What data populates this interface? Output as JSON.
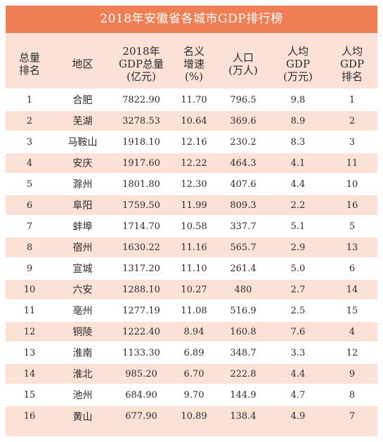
{
  "title": "2018年安徽省各城市GDP排行榜",
  "colors": {
    "header_bar": "#ef7e55",
    "band": "#fbe1d6",
    "text": "#2b2b2b"
  },
  "columns": [
    "总量\n排名",
    "地区",
    "2018年\nGDP总量\n(亿元)",
    "名义\n增速\n(%)",
    "人口\n(万人)",
    "人均\nGDP\n(万元)",
    "人均\nGDP\n排名"
  ],
  "rows": [
    [
      "1",
      "合肥",
      "7822.90",
      "11.70",
      "796.5",
      "9.8",
      "1"
    ],
    [
      "2",
      "芜湖",
      "3278.53",
      "10.64",
      "369.6",
      "8.9",
      "2"
    ],
    [
      "3",
      "马鞍山",
      "1918.10",
      "12.16",
      "230.2",
      "8.3",
      "3"
    ],
    [
      "4",
      "安庆",
      "1917.60",
      "12.22",
      "464.3",
      "4.1",
      "11"
    ],
    [
      "5",
      "滁州",
      "1801.80",
      "12.30",
      "407.6",
      "4.4",
      "10"
    ],
    [
      "6",
      "阜阳",
      "1759.50",
      "11.99",
      "809.3",
      "2.2",
      "16"
    ],
    [
      "7",
      "蚌埠",
      "1714.70",
      "10.58",
      "337.7",
      "5.1",
      "5"
    ],
    [
      "8",
      "宿州",
      "1630.22",
      "11.16",
      "565.7",
      "2.9",
      "13"
    ],
    [
      "9",
      "宣城",
      "1317.20",
      "11.10",
      "261.4",
      "5.0",
      "6"
    ],
    [
      "10",
      "六安",
      "1288.10",
      "10.27",
      "480",
      "2.7",
      "14"
    ],
    [
      "11",
      "亳州",
      "1277.19",
      "11.08",
      "516.9",
      "2.5",
      "15"
    ],
    [
      "12",
      "铜陵",
      "1222.40",
      "8.94",
      "160.8",
      "7.6",
      "4"
    ],
    [
      "13",
      "淮南",
      "1133.30",
      "6.89",
      "348.7",
      "3.3",
      "12"
    ],
    [
      "14",
      "淮北",
      "985.20",
      "6.70",
      "222.8",
      "4.4",
      "9"
    ],
    [
      "15",
      "池州",
      "684.90",
      "9.70",
      "144.9",
      "4.7",
      "8"
    ],
    [
      "16",
      "黄山",
      "677.90",
      "10.89",
      "138.4",
      "4.9",
      "7"
    ]
  ]
}
